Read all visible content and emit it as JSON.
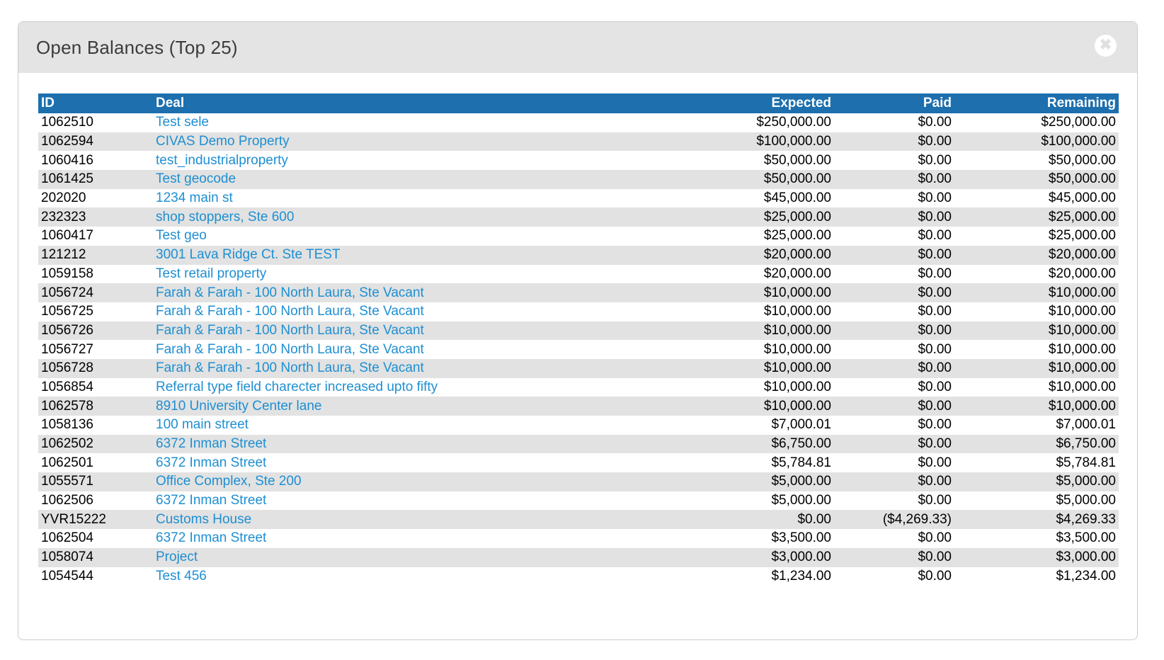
{
  "modal": {
    "title": "Open Balances (Top 25)",
    "close_label": "✖"
  },
  "colors": {
    "table_header_blue": "#1d6fae",
    "deal_link_blue": "#1e8fd2",
    "row_stripe_gray": "#e2e2e2",
    "titlebar_gray": "#e4e4e4",
    "modal_border": "#cccccc"
  },
  "table": {
    "headers": {
      "id": "ID",
      "deal": "Deal",
      "expected": "Expected",
      "paid": "Paid",
      "remaining": "Remaining"
    },
    "rows": [
      {
        "id": "1062510",
        "deal": "Test sele",
        "expected": "$250,000.00",
        "paid": "$0.00",
        "remaining": "$250,000.00"
      },
      {
        "id": "1062594",
        "deal": "CIVAS Demo Property",
        "expected": "$100,000.00",
        "paid": "$0.00",
        "remaining": "$100,000.00"
      },
      {
        "id": "1060416",
        "deal": "test_industrialproperty",
        "expected": "$50,000.00",
        "paid": "$0.00",
        "remaining": "$50,000.00"
      },
      {
        "id": "1061425",
        "deal": "Test geocode",
        "expected": "$50,000.00",
        "paid": "$0.00",
        "remaining": "$50,000.00"
      },
      {
        "id": "202020",
        "deal": "1234 main st",
        "expected": "$45,000.00",
        "paid": "$0.00",
        "remaining": "$45,000.00"
      },
      {
        "id": "232323",
        "deal": "shop stoppers, Ste 600",
        "expected": "$25,000.00",
        "paid": "$0.00",
        "remaining": "$25,000.00"
      },
      {
        "id": "1060417",
        "deal": "Test geo",
        "expected": "$25,000.00",
        "paid": "$0.00",
        "remaining": "$25,000.00"
      },
      {
        "id": "121212",
        "deal": "3001 Lava Ridge Ct. Ste TEST",
        "expected": "$20,000.00",
        "paid": "$0.00",
        "remaining": "$20,000.00"
      },
      {
        "id": "1059158",
        "deal": "Test retail property",
        "expected": "$20,000.00",
        "paid": "$0.00",
        "remaining": "$20,000.00"
      },
      {
        "id": "1056724",
        "deal": "Farah & Farah - 100 North Laura, Ste Vacant",
        "expected": "$10,000.00",
        "paid": "$0.00",
        "remaining": "$10,000.00"
      },
      {
        "id": "1056725",
        "deal": "Farah & Farah - 100 North Laura, Ste Vacant",
        "expected": "$10,000.00",
        "paid": "$0.00",
        "remaining": "$10,000.00"
      },
      {
        "id": "1056726",
        "deal": "Farah & Farah - 100 North Laura, Ste Vacant",
        "expected": "$10,000.00",
        "paid": "$0.00",
        "remaining": "$10,000.00"
      },
      {
        "id": "1056727",
        "deal": "Farah & Farah - 100 North Laura, Ste Vacant",
        "expected": "$10,000.00",
        "paid": "$0.00",
        "remaining": "$10,000.00"
      },
      {
        "id": "1056728",
        "deal": "Farah & Farah - 100 North Laura, Ste Vacant",
        "expected": "$10,000.00",
        "paid": "$0.00",
        "remaining": "$10,000.00"
      },
      {
        "id": "1056854",
        "deal": "Referral type field charecter increased upto fifty",
        "expected": "$10,000.00",
        "paid": "$0.00",
        "remaining": "$10,000.00"
      },
      {
        "id": "1062578",
        "deal": "8910 University Center lane",
        "expected": "$10,000.00",
        "paid": "$0.00",
        "remaining": "$10,000.00"
      },
      {
        "id": "1058136",
        "deal": "100 main street",
        "expected": "$7,000.01",
        "paid": "$0.00",
        "remaining": "$7,000.01"
      },
      {
        "id": "1062502",
        "deal": "6372 Inman Street",
        "expected": "$6,750.00",
        "paid": "$0.00",
        "remaining": "$6,750.00"
      },
      {
        "id": "1062501",
        "deal": "6372 Inman Street",
        "expected": "$5,784.81",
        "paid": "$0.00",
        "remaining": "$5,784.81"
      },
      {
        "id": "1055571",
        "deal": "Office Complex, Ste 200",
        "expected": "$5,000.00",
        "paid": "$0.00",
        "remaining": "$5,000.00"
      },
      {
        "id": "1062506",
        "deal": "6372 Inman Street",
        "expected": "$5,000.00",
        "paid": "$0.00",
        "remaining": "$5,000.00"
      },
      {
        "id": "YVR15222",
        "deal": "Customs House",
        "expected": "$0.00",
        "paid": "($4,269.33)",
        "remaining": "$4,269.33"
      },
      {
        "id": "1062504",
        "deal": "6372 Inman Street",
        "expected": "$3,500.00",
        "paid": "$0.00",
        "remaining": "$3,500.00"
      },
      {
        "id": "1058074",
        "deal": "Project",
        "expected": "$3,000.00",
        "paid": "$0.00",
        "remaining": "$3,000.00"
      },
      {
        "id": "1054544",
        "deal": "Test 456",
        "expected": "$1,234.00",
        "paid": "$0.00",
        "remaining": "$1,234.00"
      }
    ]
  }
}
